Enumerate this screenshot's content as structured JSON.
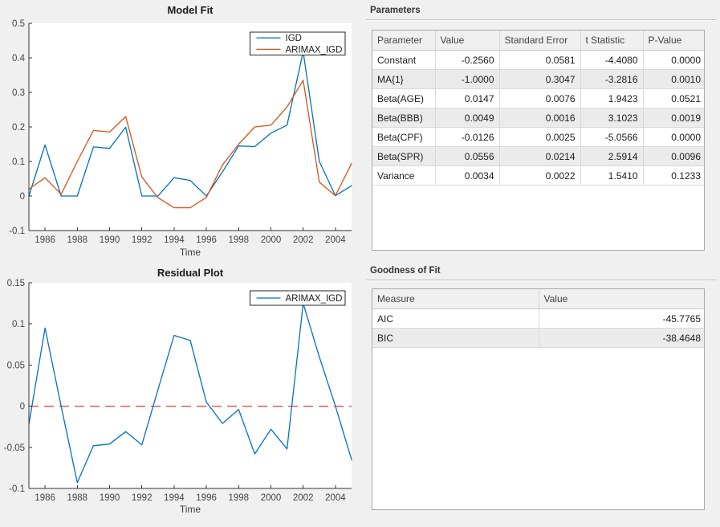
{
  "figure": {
    "background": "#f0f0f0"
  },
  "colors": {
    "series_blue": "#0072BD",
    "series_orange": "#D95319",
    "zero_line_red": "#F23A2E",
    "plot_background": "#ffffff"
  },
  "panels": {
    "parameters": {
      "label": "Parameters",
      "table": {
        "headers": [
          "Parameter",
          "Value",
          "Standard Error",
          "t Statistic",
          "P-Value"
        ],
        "rows": [
          [
            "Constant",
            "-0.2560",
            "0.0581",
            "-4.4080",
            "0.0000"
          ],
          [
            "MA{1}",
            "-1.0000",
            "0.3047",
            "-3.2816",
            "0.0010"
          ],
          [
            "Beta(AGE)",
            "0.0147",
            "0.0076",
            "1.9423",
            "0.0521"
          ],
          [
            "Beta(BBB)",
            "0.0049",
            "0.0016",
            "3.1023",
            "0.0019"
          ],
          [
            "Beta(CPF)",
            "-0.0126",
            "0.0025",
            "-5.0566",
            "0.0000"
          ],
          [
            "Beta(SPR)",
            "0.0556",
            "0.0214",
            "2.5914",
            "0.0096"
          ],
          [
            "Variance",
            "0.0034",
            "0.0022",
            "1.5410",
            "0.1233"
          ]
        ]
      }
    },
    "goodness_of_fit": {
      "label": "Goodness of Fit",
      "table": {
        "headers": [
          "Measure",
          "Value"
        ],
        "rows": [
          [
            "AIC",
            "-45.7765"
          ],
          [
            "BIC",
            "-38.4648"
          ]
        ]
      }
    }
  },
  "chart_data": [
    {
      "type": "line",
      "id": "model-fit",
      "title": "Model Fit",
      "xlabel": "Time",
      "legend_position": "top-right",
      "grid": false,
      "xlim": [
        1985,
        2005
      ],
      "ylim": [
        -0.1,
        0.5
      ],
      "xticks": [
        1986,
        1988,
        1990,
        1992,
        1994,
        1996,
        1998,
        2000,
        2002,
        2004
      ],
      "xtick_labels": [
        "1986",
        "1988",
        "1990",
        "1992",
        "1994",
        "1996",
        "1998",
        "2000",
        "2002",
        "2004"
      ],
      "yticks": [
        -0.1,
        0,
        0.1,
        0.2,
        0.3,
        0.4,
        0.5
      ],
      "ytick_labels": [
        "-0.1",
        "0",
        "0.1",
        "0.2",
        "0.3",
        "0.4",
        "0.5"
      ],
      "x": [
        1985,
        1986,
        1987,
        1988,
        1989,
        1990,
        1991,
        1992,
        1993,
        1994,
        1995,
        1996,
        1997,
        1998,
        1999,
        2000,
        2001,
        2002,
        2003,
        2004,
        2005
      ],
      "series": [
        {
          "name": "IGD",
          "color": "#0072BD",
          "values": [
            0.0,
            0.148,
            0.0,
            0.0,
            0.142,
            0.138,
            0.199,
            0.0,
            0.0,
            0.053,
            0.045,
            0.0,
            0.07,
            0.145,
            0.143,
            0.182,
            0.205,
            0.418,
            0.1,
            0.001,
            0.03
          ]
        },
        {
          "name": "ARIMAX_IGD",
          "color": "#D95319",
          "values": [
            0.02,
            0.053,
            0.005,
            0.1,
            0.19,
            0.185,
            0.23,
            0.055,
            -0.005,
            -0.034,
            -0.034,
            -0.004,
            0.09,
            0.15,
            0.2,
            0.205,
            0.258,
            0.335,
            0.04,
            0.001,
            0.094
          ]
        }
      ]
    },
    {
      "type": "line",
      "id": "residual",
      "title": "Residual Plot",
      "xlabel": "Time",
      "legend_position": "top-right",
      "grid": false,
      "xlim": [
        1985,
        2005
      ],
      "ylim": [
        -0.1,
        0.15
      ],
      "xticks": [
        1986,
        1988,
        1990,
        1992,
        1994,
        1996,
        1998,
        2000,
        2002,
        2004
      ],
      "xtick_labels": [
        "1986",
        "1988",
        "1990",
        "1992",
        "1994",
        "1996",
        "1998",
        "2000",
        "2002",
        "2004"
      ],
      "yticks": [
        -0.1,
        -0.05,
        0,
        0.05,
        0.1,
        0.15
      ],
      "ytick_labels": [
        "-0.1",
        "-0.05",
        "0",
        "0.05",
        "0.1",
        "0.15"
      ],
      "reference_line": {
        "y": 0,
        "color": "#F23A2E",
        "style": "dashed"
      },
      "x": [
        1985,
        1986,
        1987,
        1988,
        1989,
        1990,
        1991,
        1992,
        1993,
        1994,
        1995,
        1996,
        1997,
        1998,
        1999,
        2000,
        2001,
        2002,
        2003,
        2004,
        2005
      ],
      "series": [
        {
          "name": "ARIMAX_IGD",
          "color": "#0072BD",
          "values": [
            -0.022,
            0.095,
            0.0,
            -0.093,
            -0.048,
            -0.046,
            -0.031,
            -0.047,
            0.02,
            0.086,
            0.08,
            0.005,
            -0.021,
            -0.004,
            -0.058,
            -0.028,
            -0.052,
            0.125,
            0.06,
            0.0,
            -0.065
          ]
        }
      ]
    }
  ]
}
